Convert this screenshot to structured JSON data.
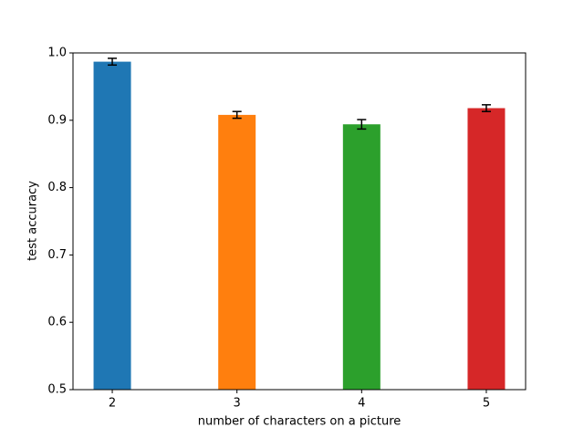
{
  "chart_data": {
    "type": "bar",
    "xlabel": "number of characters on a picture",
    "ylabel": "test accuracy",
    "x": [
      2,
      3,
      4,
      5
    ],
    "values": [
      0.987,
      0.908,
      0.894,
      0.918
    ],
    "errors": [
      0.005,
      0.005,
      0.007,
      0.005
    ],
    "colors": [
      "#1f77b4",
      "#ff7f0e",
      "#2ca02c",
      "#d62728"
    ],
    "xlim": [
      1.685,
      5.315
    ],
    "xticks": [
      2,
      3,
      4,
      5
    ],
    "ylim": [
      0.5,
      1
    ],
    "yticks": [
      0.5,
      0.6,
      0.7,
      0.8,
      0.9,
      {
        "value": 1,
        "label": "1.0"
      }
    ]
  }
}
